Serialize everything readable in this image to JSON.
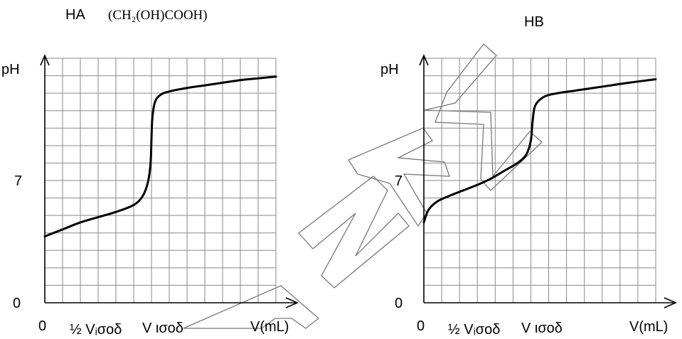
{
  "chart_data": [
    {
      "type": "line",
      "title": "HA",
      "subtitle": "(CH₂(OH)COOH)",
      "ylabel": "pH",
      "xlabel": "V(mL)",
      "y_ticks": [
        "0",
        "7"
      ],
      "x_ticks": [
        "0",
        "½ Vᵢσοδ",
        "V ισοδ"
      ],
      "x_tick_values": [
        0,
        6,
        12
      ],
      "xlim": [
        0,
        26
      ],
      "ylim": [
        0,
        14
      ],
      "grid": true,
      "series": [
        {
          "x": [
            0,
            2,
            4,
            6,
            8,
            10,
            11,
            11.6,
            11.9,
            12.0,
            12.1,
            12.4,
            13,
            14,
            16,
            18,
            20,
            22,
            24,
            26
          ],
          "y": [
            3.8,
            4.2,
            4.6,
            4.9,
            5.2,
            5.6,
            6.1,
            6.9,
            8.0,
            9.4,
            10.6,
            11.5,
            11.9,
            12.1,
            12.3,
            12.45,
            12.6,
            12.75,
            12.85,
            12.95
          ]
        }
      ]
    },
    {
      "type": "line",
      "title": "HB",
      "ylabel": "pH",
      "xlabel": "V(mL)",
      "y_ticks": [
        "0",
        "7"
      ],
      "x_ticks": [
        "0",
        "½ Vᵢσοδ",
        "V ισοδ"
      ],
      "x_tick_values": [
        0,
        6,
        12
      ],
      "xlim": [
        0,
        26
      ],
      "ylim": [
        0,
        14
      ],
      "grid": true,
      "series": [
        {
          "x": [
            0,
            0.5,
            1.5,
            3,
            4.5,
            6,
            7.5,
            9,
            10.5,
            11.5,
            12.0,
            12.2,
            12.5,
            13.5,
            15,
            17,
            19,
            21,
            23,
            26
          ],
          "y": [
            4.6,
            5.3,
            5.8,
            6.15,
            6.45,
            6.75,
            7.1,
            7.55,
            8.0,
            8.5,
            9.3,
            10.4,
            11.3,
            11.8,
            12.0,
            12.15,
            12.3,
            12.45,
            12.6,
            12.8
          ]
        }
      ]
    }
  ],
  "watermark": "ANKI"
}
